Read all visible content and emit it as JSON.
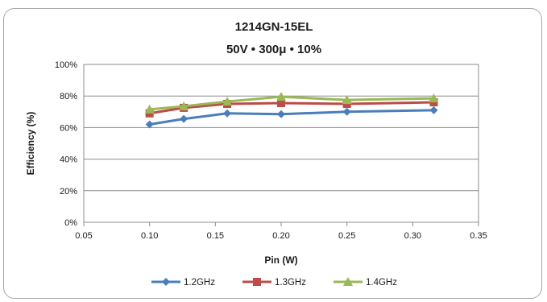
{
  "chart_data": {
    "type": "line",
    "title": "1214GN-15EL",
    "subtitle": "50V • 300μ • 10%",
    "xlabel": "Pin (W)",
    "ylabel": "Efficiency (%)",
    "xlim": [
      0.05,
      0.35
    ],
    "ylim": [
      0,
      100
    ],
    "x_ticks": [
      "0.05",
      "0.10",
      "0.15",
      "0.20",
      "0.25",
      "0.30",
      "0.35"
    ],
    "y_ticks": [
      "0%",
      "20%",
      "40%",
      "60%",
      "80%",
      "100%"
    ],
    "grid": true,
    "legend_position": "bottom",
    "series": [
      {
        "name": "1.2GHz",
        "color": "#4a7ebb",
        "marker": "diamond",
        "x": [
          0.1,
          0.126,
          0.159,
          0.2,
          0.25,
          0.316
        ],
        "y": [
          62,
          65.5,
          69,
          68.5,
          70,
          71
        ]
      },
      {
        "name": "1.3GHz",
        "color": "#be4b48",
        "marker": "square",
        "x": [
          0.1,
          0.126,
          0.159,
          0.2,
          0.25,
          0.316
        ],
        "y": [
          69,
          72.5,
          75,
          75.5,
          75,
          76
        ]
      },
      {
        "name": "1.4GHz",
        "color": "#98b954",
        "marker": "triangle",
        "x": [
          0.1,
          0.126,
          0.159,
          0.2,
          0.25,
          0.316
        ],
        "y": [
          71.5,
          73.5,
          76.5,
          79.5,
          77.5,
          78.5
        ]
      }
    ]
  }
}
